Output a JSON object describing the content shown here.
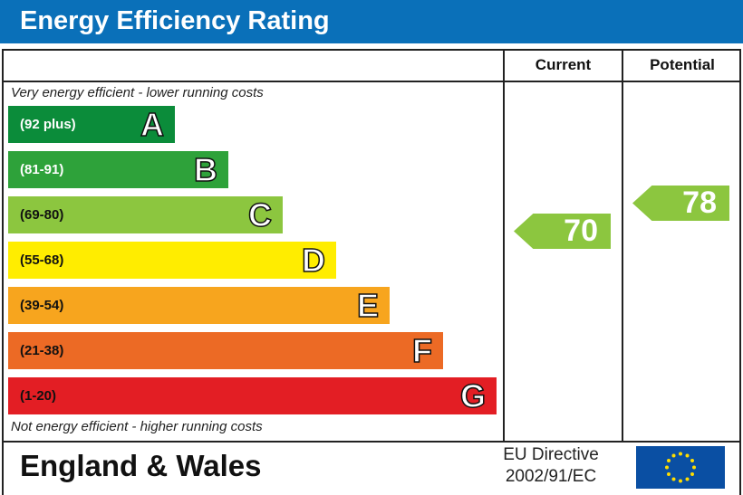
{
  "header": {
    "title": "Energy Efficiency Rating"
  },
  "columns": {
    "current": "Current",
    "potential": "Potential"
  },
  "notes": {
    "top": "Very energy efficient - lower running costs",
    "bottom": "Not energy efficient - higher running costs"
  },
  "footer": {
    "region": "England & Wales",
    "directive_line1": "EU Directive",
    "directive_line2": "2002/91/EC"
  },
  "chart_data": {
    "type": "bar",
    "title": "Energy Efficiency Rating",
    "bands": [
      {
        "letter": "A",
        "range": "(92 plus)",
        "color": "#0b8c3a"
      },
      {
        "letter": "B",
        "range": "(81-91)",
        "color": "#2ea23a"
      },
      {
        "letter": "C",
        "range": "(69-80)",
        "color": "#8cc63f"
      },
      {
        "letter": "D",
        "range": "(55-68)",
        "color": "#ffed00"
      },
      {
        "letter": "E",
        "range": "(39-54)",
        "color": "#f7a51e"
      },
      {
        "letter": "F",
        "range": "(21-38)",
        "color": "#ec6a25"
      },
      {
        "letter": "G",
        "range": "(1-20)",
        "color": "#e31e24"
      }
    ],
    "current": {
      "value": "70",
      "band": "C",
      "color": "#8cc63f"
    },
    "potential": {
      "value": "78",
      "band": "C",
      "color": "#8cc63f"
    }
  }
}
